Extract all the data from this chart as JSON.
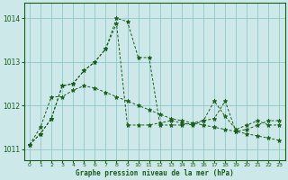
{
  "xlabel": "Graphe pression niveau de la mer (hPa)",
  "bg_color": "#cce8e8",
  "grid_color": "#99cccc",
  "line_color": "#1a5c1a",
  "ylim": [
    1010.75,
    1014.35
  ],
  "xlim": [
    -0.5,
    23.5
  ],
  "yticks": [
    1011,
    1012,
    1013,
    1014
  ],
  "xticks": [
    0,
    1,
    2,
    3,
    4,
    5,
    6,
    7,
    8,
    9,
    10,
    11,
    12,
    13,
    14,
    15,
    16,
    17,
    18,
    19,
    20,
    21,
    22,
    23
  ],
  "series": [
    [
      1011.1,
      1011.35,
      1011.7,
      1012.45,
      1012.5,
      1012.8,
      1013.0,
      1013.3,
      1014.0,
      1013.93,
      1013.1,
      1013.1,
      1011.55,
      1011.55,
      1011.55,
      1011.6,
      1011.65,
      1011.7,
      1012.1,
      1011.4,
      1011.45,
      1011.55,
      1011.65,
      1011.65
    ],
    [
      1011.1,
      1011.35,
      1011.7,
      1012.45,
      1012.5,
      1012.8,
      1013.0,
      1013.3,
      1013.88,
      1011.55,
      1011.55,
      1011.55,
      1011.6,
      1011.65,
      1011.6,
      1011.55,
      1011.65,
      1012.1,
      1011.75,
      1011.45,
      1011.55,
      1011.65,
      1011.55,
      1011.55
    ],
    [
      1011.1,
      1011.5,
      1012.2,
      1012.2,
      1012.35,
      1012.45,
      1012.4,
      1012.3,
      1012.2,
      1012.1,
      1012.0,
      1011.9,
      1011.8,
      1011.7,
      1011.65,
      1011.6,
      1011.55,
      1011.5,
      1011.45,
      1011.4,
      1011.35,
      1011.3,
      1011.25,
      1011.2
    ]
  ]
}
